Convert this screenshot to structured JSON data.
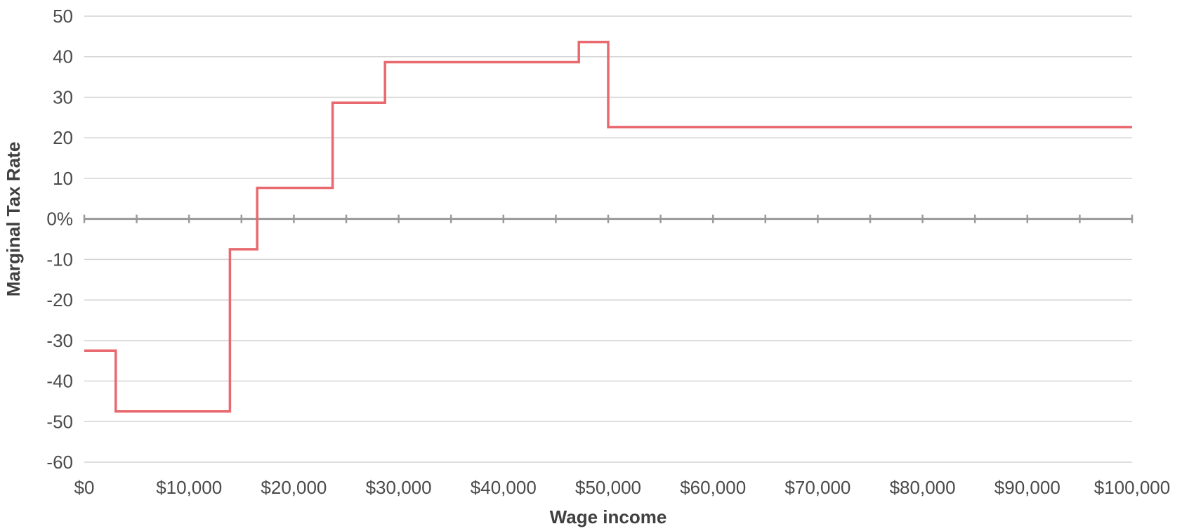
{
  "chart_data": {
    "type": "line",
    "title": "",
    "xlabel": "Wage income",
    "ylabel": "Marginal Tax Rate",
    "xlim": [
      0,
      100000
    ],
    "ylim": [
      -60,
      50
    ],
    "grid": true,
    "line_style": "step",
    "x_ticks": [
      0,
      10000,
      20000,
      30000,
      40000,
      50000,
      60000,
      70000,
      80000,
      90000,
      100000
    ],
    "x_tick_labels": [
      "$0",
      "$10,000",
      "$20,000",
      "$30,000",
      "$40,000",
      "$50,000",
      "$60,000",
      "$70,000",
      "$80,000",
      "$90,000",
      "$100,000"
    ],
    "y_ticks": [
      50,
      40,
      30,
      20,
      10,
      0,
      -10,
      -20,
      -30,
      -40,
      -50,
      -60
    ],
    "y_tick_labels": [
      "50",
      "40",
      "30",
      "20",
      "10",
      "0%",
      "-10",
      "-20",
      "-30",
      "-40",
      "-50",
      "-60"
    ],
    "series": [
      {
        "color": "#e8696e",
        "x": [
          0,
          3000,
          3000,
          13900,
          13900,
          16500,
          16500,
          23700,
          23700,
          28700,
          28700,
          47200,
          47200,
          50000,
          50000,
          100000
        ],
        "y": [
          -32.5,
          -32.5,
          -47.5,
          -47.5,
          -7.5,
          -7.5,
          7.65,
          7.65,
          28.65,
          28.65,
          38.65,
          38.65,
          43.65,
          43.65,
          22.65,
          22.65
        ]
      }
    ]
  }
}
